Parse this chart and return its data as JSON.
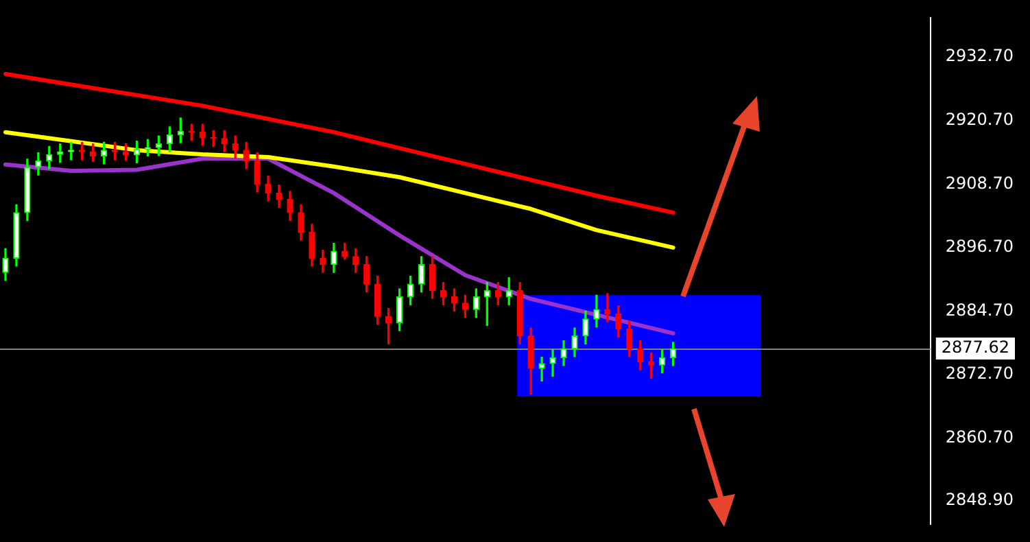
{
  "chart_data": {
    "type": "candlestick",
    "categories": [
      null,
      null,
      null,
      null,
      null,
      null,
      null,
      null,
      null,
      null,
      null,
      null,
      null,
      null,
      null,
      null,
      null,
      null,
      null,
      null,
      null,
      null,
      null,
      null,
      null,
      null,
      null,
      null,
      null,
      null,
      null,
      null,
      null,
      null,
      null,
      null,
      null,
      null,
      null,
      null,
      null,
      null,
      null,
      null,
      null,
      null,
      null,
      null,
      null,
      null,
      null,
      null,
      null,
      null,
      null,
      null,
      null,
      null,
      null,
      null,
      null,
      null,
      null,
      null,
      null,
      null,
      null,
      null,
      null,
      null,
      null,
      null,
      null,
      null,
      null,
      null,
      null,
      null,
      null,
      null,
      null,
      null,
      null,
      null,
      null
    ],
    "ohlc": [
      [
        2892.0,
        2896.5,
        2890.5,
        2894.7
      ],
      [
        2894.7,
        2904.8,
        2893.2,
        2903.3
      ],
      [
        2903.3,
        2913.4,
        2901.8,
        2911.9
      ],
      [
        2911.9,
        2914.6,
        2910.4,
        2913.1
      ],
      [
        2913.1,
        2915.8,
        2911.6,
        2914.3
      ],
      [
        2914.3,
        2916.3,
        2912.8,
        2914.8
      ],
      [
        2914.8,
        2916.6,
        2913.3,
        2915.1
      ],
      [
        2915.1,
        2916.6,
        2913.3,
        2914.8
      ],
      [
        2914.8,
        2916.3,
        2913.0,
        2914.0
      ],
      [
        2914.0,
        2916.6,
        2912.5,
        2915.1
      ],
      [
        2915.1,
        2916.6,
        2913.3,
        2914.8
      ],
      [
        2914.8,
        2916.3,
        2913.2,
        2914.2
      ],
      [
        2914.2,
        2916.8,
        2912.7,
        2915.3
      ],
      [
        2915.3,
        2917.1,
        2914.0,
        2915.6
      ],
      [
        2915.6,
        2917.8,
        2914.1,
        2916.3
      ],
      [
        2916.3,
        2919.5,
        2914.8,
        2918.0
      ],
      [
        2918.0,
        2921.2,
        2916.5,
        2918.7
      ],
      [
        2918.7,
        2920.0,
        2917.0,
        2918.5
      ],
      [
        2918.5,
        2920.0,
        2916.0,
        2917.5
      ],
      [
        2917.5,
        2918.8,
        2915.8,
        2917.3
      ],
      [
        2917.3,
        2918.8,
        2914.8,
        2916.3
      ],
      [
        2916.3,
        2917.8,
        2913.6,
        2915.1
      ],
      [
        2915.1,
        2916.6,
        2911.6,
        2913.1
      ],
      [
        2913.1,
        2914.6,
        2907.2,
        2908.7
      ],
      [
        2908.7,
        2910.2,
        2905.5,
        2907.0
      ],
      [
        2907.0,
        2908.5,
        2904.3,
        2905.8
      ],
      [
        2905.8,
        2907.3,
        2901.8,
        2903.3
      ],
      [
        2903.3,
        2904.8,
        2898.1,
        2899.6
      ],
      [
        2899.6,
        2901.1,
        2893.2,
        2894.7
      ],
      [
        2894.7,
        2896.2,
        2892.0,
        2893.5
      ],
      [
        2893.5,
        2897.5,
        2892.0,
        2896.0
      ],
      [
        2896.0,
        2897.5,
        2894.5,
        2895.0
      ],
      [
        2895.0,
        2896.5,
        2892.0,
        2893.5
      ],
      [
        2893.5,
        2895.0,
        2888.3,
        2889.8
      ],
      [
        2889.8,
        2891.3,
        2882.2,
        2883.7
      ],
      [
        2883.7,
        2885.2,
        2878.5,
        2882.5
      ],
      [
        2882.5,
        2888.9,
        2881.0,
        2887.4
      ],
      [
        2887.4,
        2891.3,
        2885.9,
        2889.8
      ],
      [
        2889.8,
        2895.0,
        2888.3,
        2893.5
      ],
      [
        2893.5,
        2895.0,
        2887.1,
        2888.6
      ],
      [
        2888.6,
        2890.1,
        2885.9,
        2887.4
      ],
      [
        2887.4,
        2888.9,
        2884.7,
        2886.2
      ],
      [
        2886.2,
        2887.7,
        2883.5,
        2885.0
      ],
      [
        2885.0,
        2888.9,
        2883.5,
        2887.4
      ],
      [
        2887.4,
        2890.1,
        2882.0,
        2888.6
      ],
      [
        2888.6,
        2890.1,
        2885.9,
        2887.4
      ],
      [
        2887.4,
        2891.0,
        2885.9,
        2888.6
      ],
      [
        2888.6,
        2890.1,
        2878.5,
        2880.0
      ],
      [
        2880.0,
        2881.5,
        2869.0,
        2873.9
      ],
      [
        2873.9,
        2876.0,
        2871.5,
        2874.8
      ],
      [
        2874.8,
        2877.4,
        2872.4,
        2875.9
      ],
      [
        2875.9,
        2879.1,
        2874.4,
        2877.6
      ],
      [
        2877.6,
        2881.5,
        2876.1,
        2880.0
      ],
      [
        2880.0,
        2884.7,
        2878.5,
        2883.2
      ],
      [
        2883.2,
        2887.7,
        2881.7,
        2885.0
      ],
      [
        2885.0,
        2888.0,
        2882.7,
        2884.2
      ],
      [
        2884.2,
        2885.7,
        2879.8,
        2881.3
      ],
      [
        2881.3,
        2882.8,
        2876.1,
        2877.6
      ],
      [
        2877.6,
        2879.1,
        2873.6,
        2875.1
      ],
      [
        2875.1,
        2876.8,
        2872.0,
        2874.5
      ],
      [
        2874.5,
        2877.4,
        2873.0,
        2875.9
      ],
      [
        2875.9,
        2878.8,
        2874.4,
        2877.62
      ],
      null,
      null,
      null,
      null,
      null,
      null,
      null,
      null,
      null,
      null,
      null,
      null,
      null,
      null,
      null,
      null,
      null,
      null,
      null,
      null,
      null,
      null,
      null
    ],
    "colors": [
      "#00ff00",
      "#00ff00",
      "#00ff00",
      "#00ff00",
      "#00ff00",
      "#00ff00",
      "#00ff00",
      "#ff0000",
      "#ff0000",
      "#00ff00",
      "#ff0000",
      "#ff0000",
      "#00ff00",
      "#00ff00",
      "#00ff00",
      "#00ff00",
      "#00ff00",
      "#ff0000",
      "#ff0000",
      "#ff0000",
      "#ff0000",
      "#ff0000",
      "#ff0000",
      "#ff0000",
      "#ff0000",
      "#ff0000",
      "#ff0000",
      "#ff0000",
      "#ff0000",
      "#ff0000",
      "#00ff00",
      "#ff0000",
      "#ff0000",
      "#ff0000",
      "#ff0000",
      "#ff0000",
      "#00ff00",
      "#00ff00",
      "#00ff00",
      "#ff0000",
      "#ff0000",
      "#ff0000",
      "#ff0000",
      "#00ff00",
      "#00ff00",
      "#ff0000",
      "#00ff00",
      "#ff0000",
      "#ff0000",
      "#00ff00",
      "#00ff00",
      "#00ff00",
      "#00ff00",
      "#00ff00",
      "#00ff00",
      "#ff0000",
      "#ff0000",
      "#ff0000",
      "#ff0000",
      "#ff0000",
      "#00ff00",
      "#00ff00",
      null,
      null,
      null,
      null,
      null,
      null,
      null,
      null,
      null,
      null,
      null,
      null,
      null,
      null,
      null,
      null,
      null,
      null,
      null,
      null,
      null,
      null,
      null
    ],
    "series": [
      {
        "type": "line",
        "color": "#ff0000",
        "values": [
          2929.5,
          null,
          null,
          null,
          null,
          null,
          2927.5,
          null,
          null,
          null,
          null,
          null,
          2925.5,
          null,
          null,
          null,
          null,
          null,
          2923.5,
          null,
          null,
          null,
          null,
          null,
          2921.0,
          null,
          null,
          null,
          null,
          null,
          2918.5,
          null,
          null,
          null,
          null,
          null,
          2915.5,
          null,
          null,
          null,
          null,
          null,
          2912.5,
          null,
          null,
          null,
          null,
          null,
          2909.5,
          null,
          null,
          null,
          null,
          null,
          2906.5,
          null,
          null,
          null,
          null,
          null,
          null,
          2903.3,
          null,
          null,
          null,
          null,
          null,
          null,
          null,
          null,
          null,
          null,
          null,
          null,
          null,
          null,
          null,
          null,
          null,
          null,
          null,
          null,
          null,
          null,
          null
        ]
      },
      {
        "type": "line",
        "color": "#ffff00",
        "values": [
          2918.5,
          null,
          null,
          null,
          null,
          null,
          2916.8,
          null,
          null,
          null,
          null,
          null,
          2915.1,
          null,
          null,
          null,
          null,
          null,
          2914.3,
          null,
          null,
          null,
          null,
          null,
          2913.8,
          null,
          null,
          null,
          null,
          null,
          2912.0,
          null,
          null,
          null,
          null,
          null,
          2910.0,
          null,
          null,
          null,
          null,
          null,
          2907.0,
          null,
          null,
          null,
          null,
          null,
          2904.0,
          null,
          null,
          null,
          null,
          null,
          2900.0,
          null,
          null,
          null,
          null,
          null,
          null,
          2896.7,
          null,
          null,
          null,
          null,
          null,
          null,
          null,
          null,
          null,
          null,
          null,
          null,
          null,
          null,
          null,
          null,
          null,
          null,
          null,
          null,
          null,
          null,
          null
        ]
      },
      {
        "type": "line",
        "color": "#9933cc",
        "values": [
          2912.4,
          null,
          null,
          null,
          null,
          null,
          2911.2,
          null,
          null,
          null,
          null,
          null,
          2911.4,
          null,
          null,
          null,
          null,
          null,
          2913.5,
          null,
          null,
          null,
          null,
          null,
          2913.5,
          null,
          null,
          null,
          null,
          null,
          2907.0,
          null,
          null,
          null,
          null,
          null,
          2899.0,
          null,
          null,
          null,
          null,
          null,
          2891.5,
          null,
          null,
          null,
          null,
          null,
          2887.0,
          null,
          null,
          null,
          null,
          null,
          2884.0,
          null,
          null,
          null,
          null,
          null,
          null,
          2880.5,
          null,
          null,
          null,
          null,
          null,
          null,
          null,
          null,
          null,
          null,
          null,
          null,
          null,
          null,
          null,
          null,
          null,
          null,
          null,
          null,
          null,
          null,
          null
        ]
      }
    ],
    "ylim": [
      2844.5,
      2940.05
    ],
    "yticks": [
      {
        "value": 2848.9,
        "label": "2848.90"
      },
      {
        "value": 2860.7,
        "label": "2860.70"
      },
      {
        "value": 2872.7,
        "label": "2872.70"
      },
      {
        "value": 2884.7,
        "label": "2884.70"
      },
      {
        "value": 2896.7,
        "label": "2896.70"
      },
      {
        "value": 2908.7,
        "label": "2908.70"
      },
      {
        "value": 2920.7,
        "label": "2920.70"
      },
      {
        "value": 2932.7,
        "label": "2932.70"
      }
    ],
    "ref_lines": [
      {
        "axis": "y",
        "value": 2877.62,
        "label": "2877.62",
        "color": "#808080"
      }
    ],
    "bands": [
      {
        "axis": "y",
        "from": 2868.6,
        "to": 2887.7,
        "color": "#0000ff"
      }
    ],
    "tick_labels": "y",
    "grid": false,
    "legend": false
  }
}
